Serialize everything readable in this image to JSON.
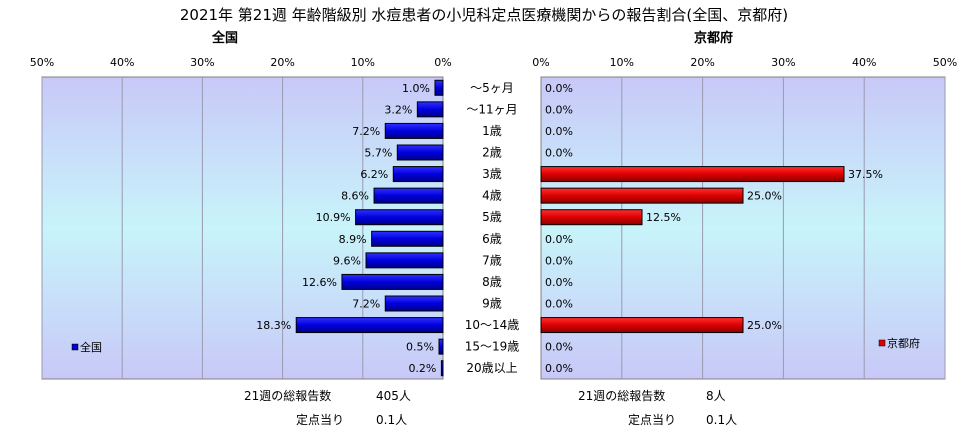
{
  "title": "2021年 第21週 年齢階級別 水痘患者の小児科定点医療機関からの報告割合(全国、京都府)",
  "colors": {
    "national_bar": "#0000cc",
    "kyoto_bar": "#dd0000",
    "plot_bg_top": "#c8c8f8",
    "plot_bg_mid": "#c8f4fa",
    "gridline": "#9a9ab0"
  },
  "chart_data": [
    {
      "type": "bar",
      "title": "全国",
      "orientation": "horizontal",
      "direction": "right-to-left",
      "categories": [
        "～5ヶ月",
        "～11ヶ月",
        "1歳",
        "2歳",
        "3歳",
        "4歳",
        "5歳",
        "6歳",
        "7歳",
        "8歳",
        "9歳",
        "10～14歳",
        "15～19歳",
        "20歳以上"
      ],
      "series": [
        {
          "name": "全国",
          "values": [
            1.0,
            3.2,
            7.2,
            5.7,
            6.2,
            8.6,
            10.9,
            8.9,
            9.6,
            12.6,
            7.2,
            18.3,
            0.5,
            0.2
          ]
        }
      ],
      "value_labels": [
        "1.0%",
        "3.2%",
        "7.2%",
        "5.7%",
        "6.2%",
        "8.6%",
        "10.9%",
        "8.9%",
        "9.6%",
        "12.6%",
        "7.2%",
        "18.3%",
        "0.5%",
        "0.2%"
      ],
      "xlim": [
        0,
        50
      ],
      "ticks": [
        "50%",
        "40%",
        "30%",
        "20%",
        "10%",
        "0%"
      ],
      "grid": true,
      "legend": "bottom-left"
    },
    {
      "type": "bar",
      "title": "京都府",
      "orientation": "horizontal",
      "direction": "left-to-right",
      "categories": [
        "～5ヶ月",
        "～11ヶ月",
        "1歳",
        "2歳",
        "3歳",
        "4歳",
        "5歳",
        "6歳",
        "7歳",
        "8歳",
        "9歳",
        "10～14歳",
        "15～19歳",
        "20歳以上"
      ],
      "series": [
        {
          "name": "京都府",
          "values": [
            0.0,
            0.0,
            0.0,
            0.0,
            37.5,
            25.0,
            12.5,
            0.0,
            0.0,
            0.0,
            0.0,
            25.0,
            0.0,
            0.0
          ]
        }
      ],
      "value_labels": [
        "0.0%",
        "0.0%",
        "0.0%",
        "0.0%",
        "37.5%",
        "25.0%",
        "12.5%",
        "0.0%",
        "0.0%",
        "0.0%",
        "0.0%",
        "25.0%",
        "0.0%",
        "0.0%"
      ],
      "xlim": [
        0,
        50
      ],
      "ticks": [
        "0%",
        "10%",
        "20%",
        "30%",
        "40%",
        "50%"
      ],
      "grid": true,
      "legend": "bottom-right"
    }
  ],
  "footer": {
    "national_total_label": "21週の総報告数",
    "national_total_value": "405人",
    "national_per_label": "定点当り",
    "national_per_value": "0.1人",
    "kyoto_total_label": "21週の総報告数",
    "kyoto_total_value": "8人",
    "kyoto_per_label": "定点当り",
    "kyoto_per_value": "0.1人"
  }
}
